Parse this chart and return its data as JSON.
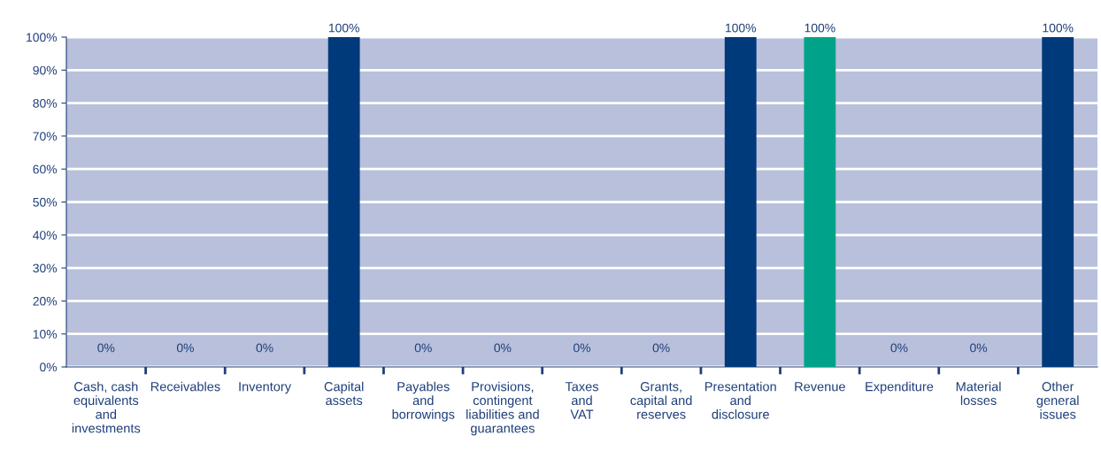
{
  "chart_data": {
    "type": "bar",
    "categories": [
      "Cash, cash\nequivalents\nand\ninvestments",
      "Receivables",
      "Inventory",
      "Capital\nassets",
      "Payables\nand\nborrowings",
      "Provisions,\ncontingent\nliabilities and\nguarantees",
      "Taxes\nand\nVAT",
      "Grants,\ncapital and\nreserves",
      "Presentation\nand\ndisclosure",
      "Revenue",
      "Expenditure",
      "Material\nlosses",
      "Other\ngeneral\nissues"
    ],
    "values": [
      0,
      0,
      0,
      100,
      0,
      0,
      0,
      0,
      100,
      100,
      0,
      0,
      100
    ],
    "colors": [
      "#003a7a",
      "#003a7a",
      "#003a7a",
      "#003a7a",
      "#003a7a",
      "#003a7a",
      "#003a7a",
      "#003a7a",
      "#003a7a",
      "#00a38a",
      "#003a7a",
      "#003a7a",
      "#003a7a"
    ],
    "value_labels": [
      "0%",
      "0%",
      "0%",
      "100%",
      "0%",
      "0%",
      "0%",
      "0%",
      "100%",
      "100%",
      "0%",
      "0%",
      "100%"
    ],
    "ylim": [
      0,
      100
    ],
    "yticks": [
      {
        "value": 0,
        "label": "0%"
      },
      {
        "value": 10,
        "label": "10%"
      },
      {
        "value": 20,
        "label": "20%"
      },
      {
        "value": 30,
        "label": "30%"
      },
      {
        "value": 40,
        "label": "40%"
      },
      {
        "value": 50,
        "label": "50%"
      },
      {
        "value": 60,
        "label": "60%"
      },
      {
        "value": 70,
        "label": "70%"
      },
      {
        "value": 80,
        "label": "80%"
      },
      {
        "value": 90,
        "label": "90%"
      },
      {
        "value": 100,
        "label": "100%"
      }
    ],
    "grid": "y",
    "legend": false
  }
}
